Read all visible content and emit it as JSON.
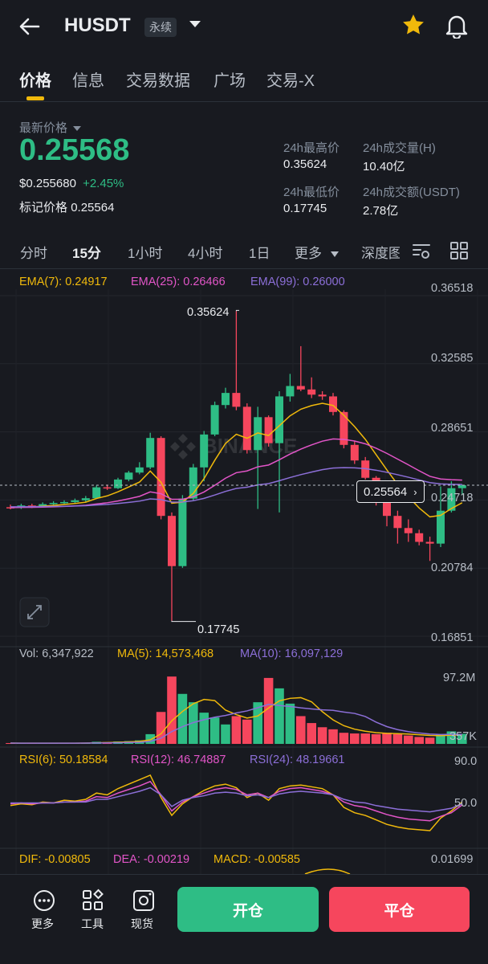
{
  "header": {
    "symbol": "HUSDT",
    "badge": "永续"
  },
  "tabs": [
    "价格",
    "信息",
    "交易数据",
    "广场",
    "交易-X"
  ],
  "price": {
    "latest_label": "最新价格",
    "last": "0.25568",
    "usd": "$0.255680",
    "change": "+2.45%",
    "mark_label": "标记价格",
    "mark": "0.25564",
    "high_label": "24h最高价",
    "high": "0.35624",
    "low_label": "24h最低价",
    "low": "0.17745",
    "vol_label": "24h成交量(H)",
    "vol": "10.40亿",
    "turnover_label": "24h成交额(USDT)",
    "turnover": "2.78亿"
  },
  "timeframes": [
    "分时",
    "15分",
    "1小时",
    "4小时",
    "1日",
    "更多",
    "深度图"
  ],
  "ema": {
    "ema7": "EMA(7): 0.24917",
    "ema25": "EMA(25): 0.26466",
    "ema99": "EMA(99): 0.26000"
  },
  "price_axis": [
    "0.36518",
    "0.32585",
    "0.28651",
    "0.24718",
    "0.20784",
    "0.16851"
  ],
  "annotations": {
    "high": "0.35624",
    "low": "0.17745",
    "current": "0.25564",
    "watermark": "BINANCE"
  },
  "volume": {
    "vol": "Vol: 6,347,922",
    "ma5": "MA(5): 14,573,468",
    "ma10": "MA(10): 16,097,129",
    "axis_top": "97.2M",
    "axis_bottom": "357K"
  },
  "rsi": {
    "rsi6": "RSI(6): 50.18584",
    "rsi12": "RSI(12): 46.74887",
    "rsi24": "RSI(24): 48.19661",
    "axis_top": "90.0",
    "axis_mid": "50.0"
  },
  "macd": {
    "dif": "DIF: -0.00805",
    "dea": "DEA: -0.00219",
    "macd": "MACD: -0.00585",
    "axis": "0.01699"
  },
  "bottom": {
    "more": "更多",
    "tools": "工具",
    "spot": "现货",
    "open": "开仓",
    "close": "平仓"
  },
  "colors": {
    "up": "#2ebd85",
    "down": "#f6465d",
    "accent": "#f0b90b",
    "ema7": "#f0b90b",
    "ema25": "#e255c8",
    "ema99": "#8c6fd8"
  },
  "chart_data": {
    "type": "candlestick",
    "ylim": [
      0.16851,
      0.36518
    ],
    "candles": [
      {
        "o": 0.243,
        "c": 0.2428,
        "h": 0.2445,
        "l": 0.2418
      },
      {
        "o": 0.2428,
        "c": 0.244,
        "h": 0.245,
        "l": 0.242
      },
      {
        "o": 0.244,
        "c": 0.2435,
        "h": 0.245,
        "l": 0.2425
      },
      {
        "o": 0.2435,
        "c": 0.2448,
        "h": 0.2458,
        "l": 0.243
      },
      {
        "o": 0.2448,
        "c": 0.2455,
        "h": 0.2465,
        "l": 0.244
      },
      {
        "o": 0.2455,
        "c": 0.246,
        "h": 0.247,
        "l": 0.2448
      },
      {
        "o": 0.246,
        "c": 0.247,
        "h": 0.248,
        "l": 0.2452
      },
      {
        "o": 0.247,
        "c": 0.2482,
        "h": 0.2495,
        "l": 0.2462
      },
      {
        "o": 0.2482,
        "c": 0.2545,
        "h": 0.2555,
        "l": 0.2478
      },
      {
        "o": 0.2545,
        "c": 0.254,
        "h": 0.256,
        "l": 0.253
      },
      {
        "o": 0.254,
        "c": 0.259,
        "h": 0.26,
        "l": 0.2535
      },
      {
        "o": 0.259,
        "c": 0.263,
        "h": 0.264,
        "l": 0.258
      },
      {
        "o": 0.263,
        "c": 0.266,
        "h": 0.269,
        "l": 0.262
      },
      {
        "o": 0.266,
        "c": 0.283,
        "h": 0.286,
        "l": 0.265
      },
      {
        "o": 0.283,
        "c": 0.238,
        "h": 0.284,
        "l": 0.236
      },
      {
        "o": 0.238,
        "c": 0.209,
        "h": 0.24,
        "l": 0.1775
      },
      {
        "o": 0.209,
        "c": 0.248,
        "h": 0.25,
        "l": 0.208
      },
      {
        "o": 0.248,
        "c": 0.266,
        "h": 0.268,
        "l": 0.247
      },
      {
        "o": 0.266,
        "c": 0.285,
        "h": 0.287,
        "l": 0.258
      },
      {
        "o": 0.285,
        "c": 0.302,
        "h": 0.304,
        "l": 0.284
      },
      {
        "o": 0.302,
        "c": 0.309,
        "h": 0.312,
        "l": 0.3
      },
      {
        "o": 0.309,
        "c": 0.301,
        "h": 0.3562,
        "l": 0.299
      },
      {
        "o": 0.301,
        "c": 0.276,
        "h": 0.303,
        "l": 0.274
      },
      {
        "o": 0.276,
        "c": 0.295,
        "h": 0.301,
        "l": 0.242
      },
      {
        "o": 0.295,
        "c": 0.28,
        "h": 0.296,
        "l": 0.278
      },
      {
        "o": 0.28,
        "c": 0.307,
        "h": 0.31,
        "l": 0.24
      },
      {
        "o": 0.307,
        "c": 0.313,
        "h": 0.32,
        "l": 0.304
      },
      {
        "o": 0.313,
        "c": 0.311,
        "h": 0.336,
        "l": 0.31
      },
      {
        "o": 0.311,
        "c": 0.308,
        "h": 0.318,
        "l": 0.306
      },
      {
        "o": 0.308,
        "c": 0.307,
        "h": 0.31,
        "l": 0.305
      },
      {
        "o": 0.307,
        "c": 0.298,
        "h": 0.309,
        "l": 0.296
      },
      {
        "o": 0.298,
        "c": 0.279,
        "h": 0.299,
        "l": 0.277
      },
      {
        "o": 0.279,
        "c": 0.27,
        "h": 0.281,
        "l": 0.268
      },
      {
        "o": 0.27,
        "c": 0.26,
        "h": 0.272,
        "l": 0.259
      },
      {
        "o": 0.26,
        "c": 0.247,
        "h": 0.261,
        "l": 0.244
      },
      {
        "o": 0.247,
        "c": 0.238,
        "h": 0.25,
        "l": 0.232
      },
      {
        "o": 0.238,
        "c": 0.231,
        "h": 0.241,
        "l": 0.222
      },
      {
        "o": 0.231,
        "c": 0.228,
        "h": 0.236,
        "l": 0.223
      },
      {
        "o": 0.228,
        "c": 0.223,
        "h": 0.23,
        "l": 0.221
      },
      {
        "o": 0.223,
        "c": 0.222,
        "h": 0.226,
        "l": 0.212
      },
      {
        "o": 0.222,
        "c": 0.241,
        "h": 0.255,
        "l": 0.22
      },
      {
        "o": 0.241,
        "c": 0.254,
        "h": 0.258,
        "l": 0.24
      },
      {
        "o": 0.254,
        "c": 0.2557,
        "h": 0.256,
        "l": 0.25
      }
    ],
    "volume": [
      1.2,
      0.9,
      1.0,
      1.1,
      0.8,
      1.0,
      1.2,
      1.5,
      3.0,
      2.5,
      3.5,
      4.0,
      5.0,
      14.0,
      46.0,
      97.0,
      72.0,
      60.0,
      45.0,
      38.0,
      28.0,
      40.0,
      35.0,
      60.0,
      95.0,
      80.0,
      58.0,
      40.0,
      30.0,
      24.0,
      21.0,
      16.0,
      15.0,
      15.0,
      14.0,
      16.0,
      14.0,
      12.0,
      10.0,
      9.0,
      14.0,
      18.0,
      14.5
    ],
    "rsi6": [
      46,
      48,
      47,
      50,
      49,
      52,
      51,
      53,
      60,
      58,
      65,
      70,
      75,
      80,
      55,
      35,
      48,
      56,
      63,
      68,
      70,
      66,
      55,
      60,
      52,
      65,
      68,
      69,
      67,
      65,
      58,
      44,
      38,
      35,
      30,
      25,
      22,
      20,
      19,
      18,
      32,
      40,
      50
    ],
    "rsi12": [
      48,
      49,
      48,
      49,
      49,
      50,
      50,
      51,
      56,
      55,
      60,
      64,
      68,
      73,
      58,
      40,
      50,
      56,
      60,
      64,
      66,
      64,
      58,
      60,
      55,
      62,
      65,
      66,
      64,
      62,
      58,
      50,
      46,
      44,
      40,
      36,
      33,
      31,
      30,
      29,
      34,
      38,
      46.7
    ],
    "rsi24": [
      49,
      49,
      49,
      49,
      49,
      50,
      50,
      50,
      53,
      53,
      56,
      59,
      62,
      66,
      58,
      45,
      52,
      55,
      57,
      60,
      61,
      60,
      57,
      58,
      55,
      59,
      61,
      62,
      61,
      60,
      58,
      53,
      50,
      49,
      46,
      44,
      42,
      41,
      40,
      39,
      41,
      43,
      48.2
    ]
  }
}
